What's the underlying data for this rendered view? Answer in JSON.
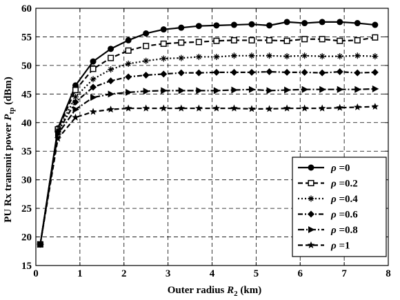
{
  "chart_data": {
    "type": "line",
    "xlabel": {
      "prefix": "Outer radius ",
      "var": "R",
      "sub": "2",
      "suffix": " (km)"
    },
    "ylabel": {
      "prefix": "PU Rx transmit power ",
      "var": "P",
      "sub": "tp",
      "suffix": " (dBm)"
    },
    "xlim": [
      0,
      8
    ],
    "ylim": [
      15,
      60
    ],
    "xticks": [
      0,
      1,
      2,
      3,
      4,
      5,
      6,
      7,
      8
    ],
    "yticks": [
      15,
      20,
      25,
      30,
      35,
      40,
      45,
      50,
      55,
      60
    ],
    "grid": true,
    "legend_position": "lower-right",
    "x": [
      0.1,
      0.5,
      0.9,
      1.3,
      1.7,
      2.1,
      2.5,
      2.9,
      3.3,
      3.7,
      4.1,
      4.5,
      4.9,
      5.3,
      5.7,
      6.1,
      6.5,
      6.9,
      7.3,
      7.7
    ],
    "series": [
      {
        "name": "ρ =0",
        "marker": "circle",
        "dash": "solid",
        "values": [
          18.7,
          39.0,
          46.5,
          50.7,
          52.9,
          54.4,
          55.6,
          56.3,
          56.6,
          56.9,
          57.0,
          57.1,
          57.2,
          57.0,
          57.6,
          57.4,
          57.6,
          57.6,
          57.4,
          57.1
        ]
      },
      {
        "name": "ρ =0.2",
        "marker": "square",
        "dash": "dash",
        "values": [
          18.7,
          38.8,
          45.7,
          49.4,
          51.3,
          52.6,
          53.4,
          53.8,
          54.0,
          54.1,
          54.3,
          54.4,
          54.4,
          54.4,
          54.3,
          54.6,
          54.6,
          54.3,
          54.4,
          54.9
        ]
      },
      {
        "name": "ρ =0.4",
        "marker": "star",
        "dash": "dot",
        "values": [
          18.7,
          38.6,
          44.5,
          47.6,
          49.3,
          50.3,
          50.8,
          51.2,
          51.3,
          51.5,
          51.5,
          51.7,
          51.7,
          51.7,
          51.6,
          51.7,
          51.6,
          51.6,
          51.7,
          51.6
        ]
      },
      {
        "name": "ρ =0.6",
        "marker": "diamond",
        "dash": "dashdot",
        "values": [
          18.7,
          38.4,
          43.6,
          46.2,
          47.3,
          48.0,
          48.3,
          48.5,
          48.7,
          48.7,
          48.8,
          48.8,
          48.8,
          48.9,
          48.8,
          48.8,
          48.7,
          48.9,
          48.7,
          48.8
        ]
      },
      {
        "name": "ρ =0.8",
        "marker": "triangle",
        "dash": "dashdot2",
        "values": [
          18.7,
          38.0,
          42.3,
          44.4,
          45.0,
          45.3,
          45.5,
          45.6,
          45.6,
          45.6,
          45.6,
          45.7,
          45.8,
          45.6,
          45.7,
          45.8,
          45.8,
          45.8,
          45.8,
          45.9
        ]
      },
      {
        "name": "ρ =1",
        "marker": "asterisk",
        "dash": "dash",
        "values": [
          18.7,
          37.2,
          40.9,
          41.9,
          42.3,
          42.5,
          42.5,
          42.5,
          42.5,
          42.5,
          42.5,
          42.5,
          42.4,
          42.4,
          42.5,
          42.5,
          42.5,
          42.6,
          42.7,
          42.8
        ]
      }
    ]
  }
}
